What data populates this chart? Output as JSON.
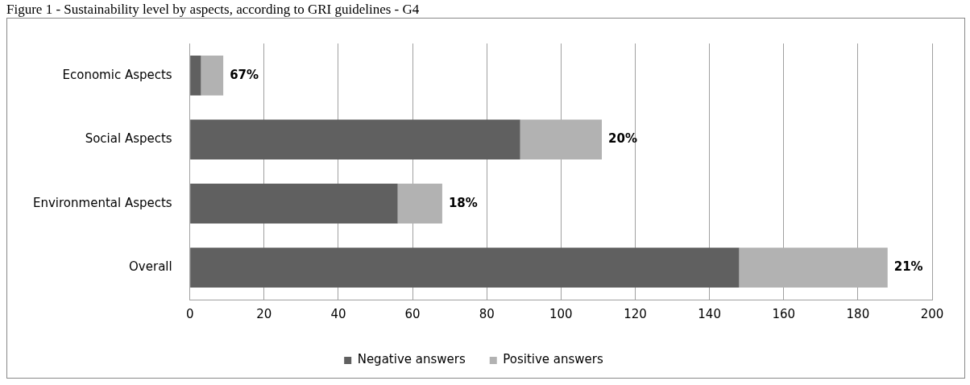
{
  "chart_data": {
    "type": "bar",
    "title": "Figure 1 - Sustainability level by aspects, according to GRI guidelines - G4",
    "orientation": "horizontal",
    "stacked": true,
    "categories": [
      "Economic Aspects",
      "Social Aspects",
      "Environmental Aspects",
      "Overall"
    ],
    "series": [
      {
        "name": "Negative answers",
        "color": "#606060",
        "values": [
          3,
          89,
          56,
          148
        ]
      },
      {
        "name": "Positive answers",
        "color": "#b2b2b2",
        "values": [
          6,
          22,
          12,
          40
        ]
      }
    ],
    "annotations": [
      {
        "text": "67%",
        "x": 9,
        "y": "Economic Aspects"
      },
      {
        "text": "20%",
        "x": 111,
        "y": "Social Aspects"
      },
      {
        "text": "18%",
        "x": 68,
        "y": "Environmental Aspects"
      },
      {
        "text": "21%",
        "x": 188,
        "y": "Overall"
      }
    ],
    "xlim": [
      0,
      200
    ],
    "xticks": [
      0,
      20,
      40,
      60,
      80,
      100,
      120,
      140,
      160,
      180,
      200
    ],
    "grid": "x",
    "legend": "bottom"
  }
}
